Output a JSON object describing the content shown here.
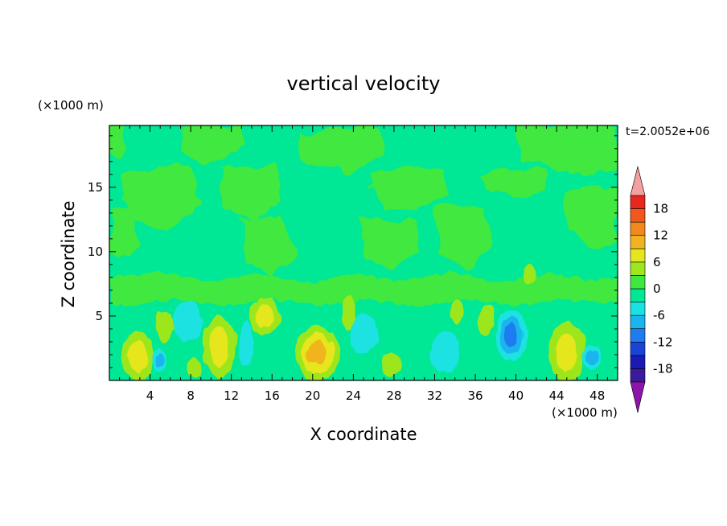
{
  "chart_data": {
    "type": "heatmap",
    "title": "vertical velocity",
    "xlabel": "X coordinate",
    "ylabel": "Z coordinate",
    "x_unit": "(×1000 m)",
    "y_unit": "(×1000 m)",
    "time_label": "t=2.0052e+06",
    "xlim": [
      0,
      50
    ],
    "ylim": [
      0,
      19.8
    ],
    "x_ticks": [
      4,
      8,
      12,
      16,
      20,
      24,
      28,
      32,
      36,
      40,
      44,
      48
    ],
    "x_tick_labels": [
      "4",
      "8",
      "12",
      "16",
      "20",
      "24",
      "28",
      "32",
      "36",
      "40",
      "44",
      "48"
    ],
    "y_ticks": [
      5,
      10,
      15
    ],
    "y_tick_labels": [
      "5",
      "10",
      "15"
    ],
    "colorbar": {
      "levels": [
        -21,
        -18,
        -15,
        -12,
        -9,
        -6,
        -3,
        0,
        3,
        6,
        9,
        12,
        15,
        18,
        21
      ],
      "tick_values": [
        -18,
        -12,
        -6,
        0,
        6,
        12,
        18
      ],
      "tick_labels": [
        "-18",
        "-12",
        "-6",
        "0",
        "6",
        "12",
        "18"
      ],
      "colors": [
        "#3c1a9c",
        "#1a1ab4",
        "#1a44d8",
        "#1e7cf0",
        "#1ab4ee",
        "#1ae2e2",
        "#00e896",
        "#3fe83f",
        "#9ee61e",
        "#e6e61e",
        "#f0b41e",
        "#f08a1e",
        "#f0581e",
        "#e6281e"
      ],
      "under_color": "#8c14a8",
      "over_color": "#f4a0a0"
    },
    "features": [
      {
        "kind": "updraft",
        "x": 2.8,
        "z": 1.9,
        "rx": 1.6,
        "rz": 1.9,
        "value": 8
      },
      {
        "kind": "updraft",
        "x": 10.8,
        "z": 2.6,
        "rx": 1.6,
        "rz": 2.4,
        "value": 8
      },
      {
        "kind": "updraft",
        "x": 20.5,
        "z": 2.1,
        "rx": 2.2,
        "rz": 2.1,
        "value": 9
      },
      {
        "kind": "updraft",
        "x": 45.0,
        "z": 2.2,
        "rx": 1.8,
        "rz": 2.3,
        "value": 8
      },
      {
        "kind": "updraft",
        "x": 15.3,
        "z": 5.0,
        "rx": 1.5,
        "rz": 1.4,
        "value": 7
      },
      {
        "kind": "updraft",
        "x": 5.5,
        "z": 4.2,
        "rx": 0.9,
        "rz": 1.2,
        "value": 5
      },
      {
        "kind": "updraft",
        "x": 37.0,
        "z": 4.6,
        "rx": 0.8,
        "rz": 1.3,
        "value": 5
      },
      {
        "kind": "updraft",
        "x": 8.4,
        "z": 1.0,
        "rx": 0.8,
        "rz": 0.8,
        "value": 5
      },
      {
        "kind": "updraft",
        "x": 27.8,
        "z": 1.2,
        "rx": 1.0,
        "rz": 0.9,
        "value": 4
      },
      {
        "kind": "updraft",
        "x": 23.5,
        "z": 5.2,
        "rx": 0.6,
        "rz": 1.4,
        "value": 4
      },
      {
        "kind": "updraft",
        "x": 34.2,
        "z": 5.3,
        "rx": 0.5,
        "rz": 1.0,
        "value": 4
      },
      {
        "kind": "updraft",
        "x": 41.3,
        "z": 8.2,
        "rx": 0.7,
        "rz": 0.8,
        "value": 4
      },
      {
        "kind": "downdraft",
        "x": 39.5,
        "z": 3.5,
        "rx": 1.6,
        "rz": 2.0,
        "value": -9
      },
      {
        "kind": "downdraft",
        "x": 4.9,
        "z": 1.6,
        "rx": 0.6,
        "rz": 0.9,
        "value": -7
      },
      {
        "kind": "downdraft",
        "x": 47.5,
        "z": 1.8,
        "rx": 0.8,
        "rz": 1.0,
        "value": -6
      },
      {
        "kind": "downdraft",
        "x": 13.4,
        "z": 2.8,
        "rx": 0.7,
        "rz": 1.8,
        "value": -5
      },
      {
        "kind": "downdraft",
        "x": 7.8,
        "z": 4.6,
        "rx": 1.5,
        "rz": 1.6,
        "value": -4
      },
      {
        "kind": "downdraft",
        "x": 25.0,
        "z": 3.6,
        "rx": 1.4,
        "rz": 1.6,
        "value": -4
      },
      {
        "kind": "downdraft",
        "x": 33.0,
        "z": 2.2,
        "rx": 1.5,
        "rz": 1.6,
        "value": -4
      }
    ]
  }
}
